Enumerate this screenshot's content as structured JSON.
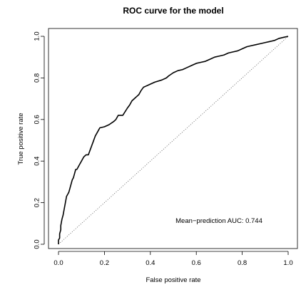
{
  "chart_data": {
    "type": "line",
    "title": "ROC curve for the model",
    "xlabel": "False positive rate",
    "ylabel": "True positive rate",
    "xlim": [
      0,
      1
    ],
    "ylim": [
      0,
      1
    ],
    "xticks": [
      "0.0",
      "0.2",
      "0.4",
      "0.6",
      "0.8",
      "1.0"
    ],
    "yticks": [
      "0.0",
      "0.2",
      "0.4",
      "0.6",
      "0.8",
      "1.0"
    ],
    "grid": false,
    "annotation": "Mean−prediction AUC: 0.744",
    "reference_line": {
      "style": "dotted",
      "x": [
        0,
        1
      ],
      "y": [
        0,
        1
      ]
    },
    "series": [
      {
        "x": [
          0.0,
          0.0,
          0.005,
          0.005,
          0.01,
          0.01,
          0.015,
          0.02,
          0.025,
          0.03,
          0.035,
          0.04,
          0.045,
          0.05,
          0.055,
          0.06,
          0.065,
          0.07,
          0.075,
          0.08,
          0.085,
          0.09,
          0.095,
          0.1,
          0.11,
          0.12,
          0.13,
          0.14,
          0.15,
          0.16,
          0.17,
          0.18,
          0.2,
          0.22,
          0.24,
          0.25,
          0.26,
          0.27,
          0.28,
          0.3,
          0.31,
          0.32,
          0.33,
          0.34,
          0.35,
          0.36,
          0.37,
          0.38,
          0.39,
          0.4,
          0.42,
          0.45,
          0.47,
          0.48,
          0.5,
          0.52,
          0.54,
          0.56,
          0.58,
          0.6,
          0.62,
          0.64,
          0.66,
          0.68,
          0.7,
          0.72,
          0.74,
          0.76,
          0.78,
          0.8,
          0.82,
          0.84,
          0.86,
          0.88,
          0.9,
          0.92,
          0.94,
          0.96,
          0.98,
          1.0
        ],
        "y": [
          0.0,
          0.02,
          0.03,
          0.05,
          0.07,
          0.09,
          0.12,
          0.14,
          0.17,
          0.2,
          0.23,
          0.24,
          0.25,
          0.27,
          0.29,
          0.31,
          0.32,
          0.34,
          0.36,
          0.36,
          0.37,
          0.38,
          0.39,
          0.4,
          0.42,
          0.43,
          0.43,
          0.46,
          0.49,
          0.52,
          0.54,
          0.56,
          0.565,
          0.575,
          0.59,
          0.6,
          0.62,
          0.62,
          0.62,
          0.655,
          0.67,
          0.69,
          0.7,
          0.71,
          0.72,
          0.74,
          0.755,
          0.76,
          0.765,
          0.77,
          0.78,
          0.79,
          0.8,
          0.81,
          0.825,
          0.835,
          0.84,
          0.85,
          0.86,
          0.87,
          0.875,
          0.88,
          0.89,
          0.9,
          0.905,
          0.91,
          0.92,
          0.925,
          0.93,
          0.94,
          0.95,
          0.955,
          0.96,
          0.965,
          0.97,
          0.975,
          0.98,
          0.99,
          0.995,
          1.0
        ]
      }
    ]
  }
}
